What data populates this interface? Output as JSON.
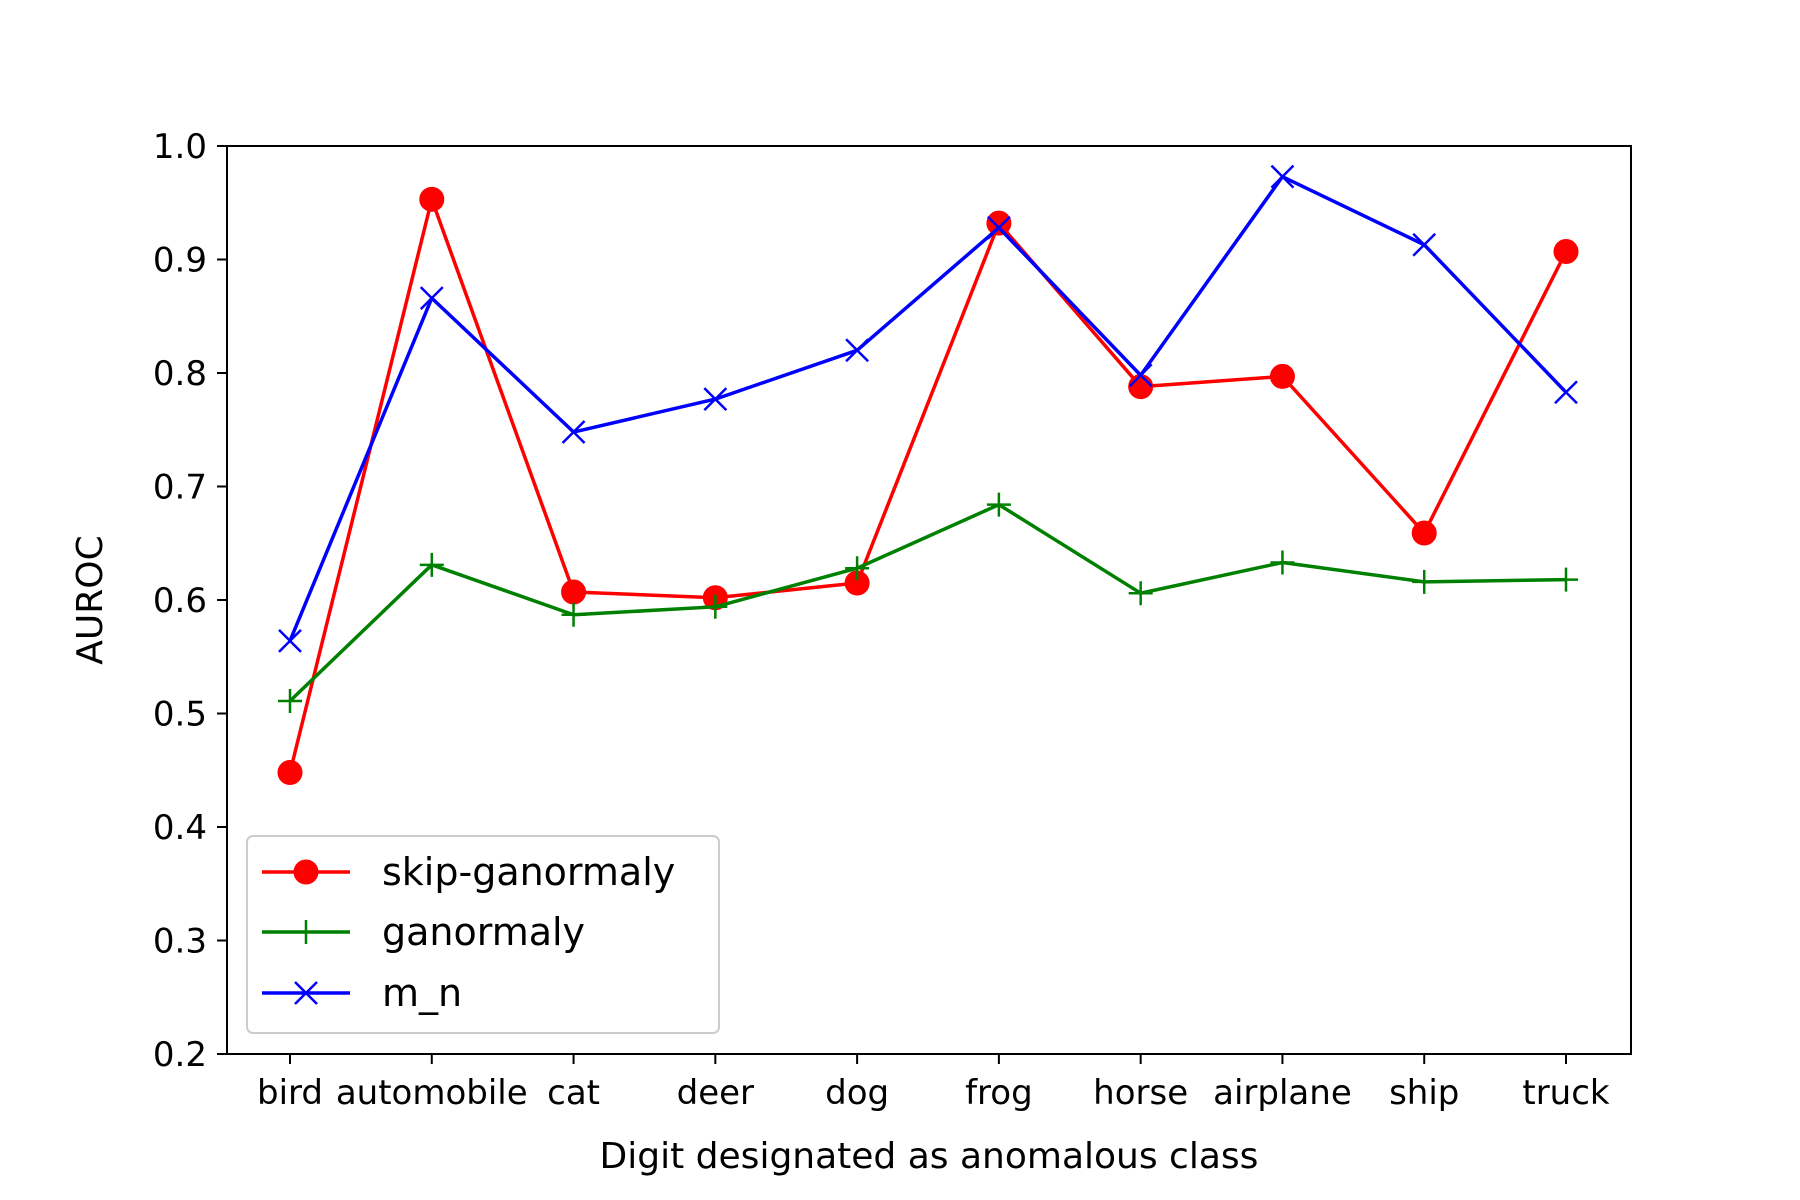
{
  "chart_data": {
    "type": "line",
    "title": "",
    "xlabel": "Digit designated as anomalous class",
    "ylabel": "AUROC",
    "ylim": [
      0.2,
      1.0
    ],
    "yticks": [
      "0.2",
      "0.3",
      "0.4",
      "0.5",
      "0.6",
      "0.7",
      "0.8",
      "0.9",
      "1.0"
    ],
    "grid": false,
    "legend_position": "bottom-left",
    "categories": [
      "bird",
      "automobile",
      "cat",
      "deer",
      "dog",
      "frog",
      "horse",
      "airplane",
      "ship",
      "truck"
    ],
    "series": [
      {
        "name": "skip-ganormaly",
        "color": "#ff0000",
        "marker": "circle",
        "values": [
          0.448,
          0.953,
          0.607,
          0.602,
          0.615,
          0.932,
          0.788,
          0.797,
          0.659,
          0.907
        ]
      },
      {
        "name": "ganormaly",
        "color": "#008000",
        "marker": "plus",
        "values": [
          0.511,
          0.631,
          0.587,
          0.594,
          0.628,
          0.684,
          0.606,
          0.633,
          0.616,
          0.618
        ]
      },
      {
        "name": "m_n",
        "color": "#0000ff",
        "marker": "x",
        "values": [
          0.564,
          0.866,
          0.748,
          0.777,
          0.82,
          0.928,
          0.798,
          0.973,
          0.913,
          0.783
        ]
      }
    ]
  }
}
